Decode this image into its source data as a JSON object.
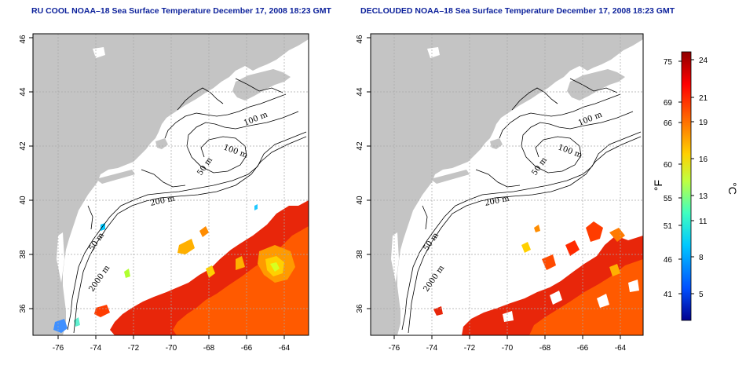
{
  "panels": [
    {
      "id": "left",
      "title": "RU COOL NOAA–18 Sea Surface Temperature December 17, 2008 18:23 GMT",
      "x_ticks": [
        "-76",
        "-74",
        "-72",
        "-70",
        "-68",
        "-66",
        "-64"
      ],
      "y_ticks": [
        "36",
        "38",
        "40",
        "42",
        "44",
        "46"
      ],
      "contour_labels": [
        "100 m",
        "100 m",
        "50 m",
        "200 m",
        "50 m",
        "2000 m"
      ]
    },
    {
      "id": "right",
      "title": "DECLOUDED NOAA–18 Sea Surface Temperature December 17, 2008 18:23 GMT",
      "x_ticks": [
        "-76",
        "-74",
        "-72",
        "-70",
        "-68",
        "-66",
        "-64"
      ],
      "y_ticks": [
        "36",
        "38",
        "40",
        "42",
        "44",
        "46"
      ],
      "contour_labels": [
        "100 m",
        "100 m",
        "50 m",
        "200 m",
        "50 m",
        "2000 m"
      ]
    }
  ],
  "colorbar": {
    "fahrenheit_unit": "°F",
    "celsius_unit": "°C",
    "fahrenheit_ticks": [
      "75",
      "69",
      "66",
      "60",
      "55",
      "51",
      "46",
      "41"
    ],
    "celsius_ticks": [
      "24",
      "21",
      "19",
      "16",
      "13",
      "11",
      "8",
      "5"
    ],
    "colors": [
      "#00008f",
      "#0050ff",
      "#00c8ff",
      "#40ffc0",
      "#c0ff40",
      "#ffd000",
      "#ff7000",
      "#ff0000",
      "#8f0000"
    ]
  },
  "colors": {
    "land": "#c4c4c4",
    "ocean": "#ffffff",
    "title": "#0a1f9a",
    "grid": "#a8a8a8"
  }
}
